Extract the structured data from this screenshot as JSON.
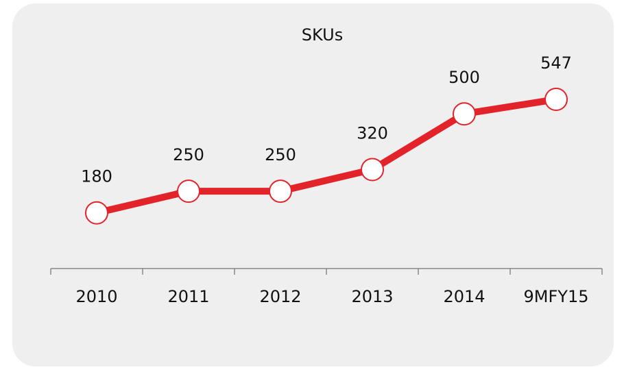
{
  "chart_data": {
    "type": "line",
    "title": "SKUs",
    "categories": [
      "2010",
      "2011",
      "2012",
      "2013",
      "2014",
      "9MFY15"
    ],
    "values": [
      180,
      250,
      250,
      320,
      500,
      547
    ],
    "color": "#e3232a",
    "grid": false
  }
}
